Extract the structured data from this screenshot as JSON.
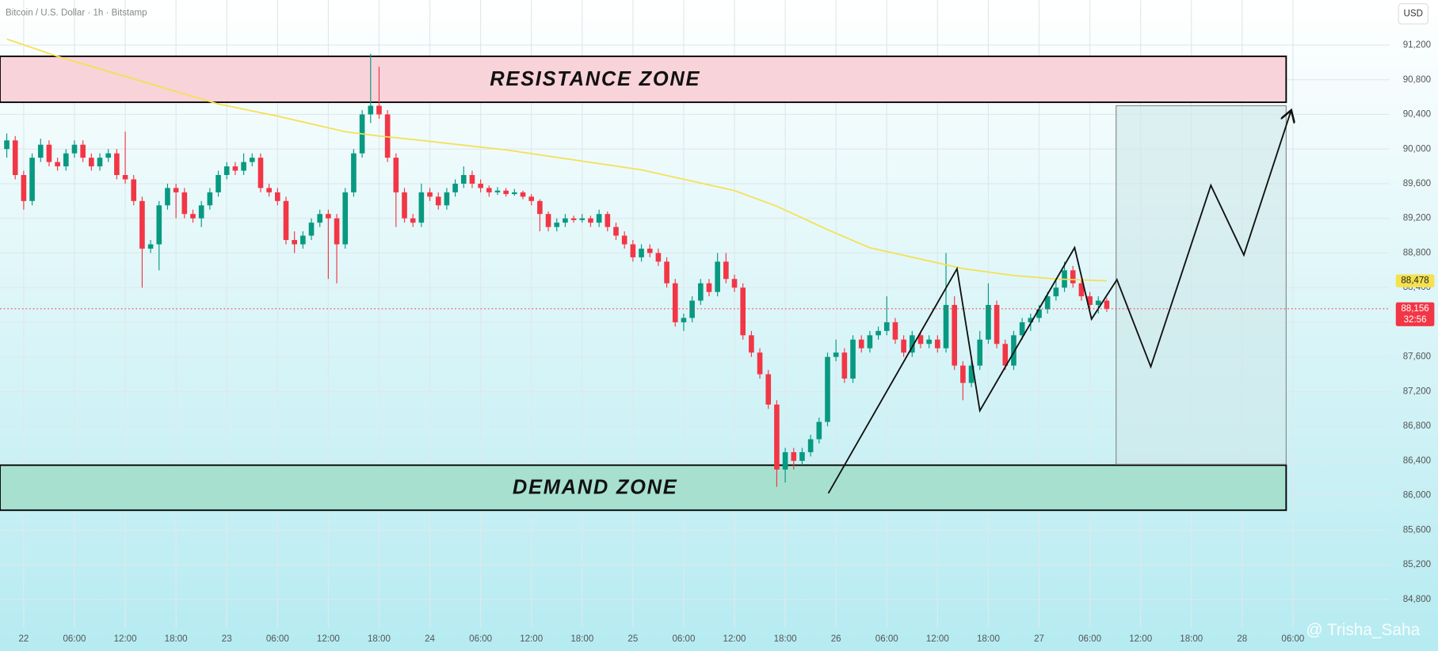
{
  "chart_data": {
    "type": "candlestick",
    "title": "Bitcoin / U.S. Dollar · 1h · Bitstamp",
    "currency": "USD",
    "watermark": "@ Trisha_Saha",
    "up_color": "#089981",
    "down_color": "#f23645",
    "xlim": [
      -0.8,
      163.4
    ],
    "ylim": [
      84470,
      91720
    ],
    "grid": true,
    "yticks": [
      {
        "value": 91200,
        "label": "91,200"
      },
      {
        "value": 90800,
        "label": "90,800"
      },
      {
        "value": 90400,
        "label": "90,400"
      },
      {
        "value": 90000,
        "label": "90,000"
      },
      {
        "value": 89600,
        "label": "89,600"
      },
      {
        "value": 89200,
        "label": "89,200"
      },
      {
        "value": 88800,
        "label": "88,800"
      },
      {
        "value": 88400,
        "label": "88,400"
      },
      {
        "value": 88000,
        "label": "88,000"
      },
      {
        "value": 87600,
        "label": "87,600"
      },
      {
        "value": 87200,
        "label": "87,200"
      },
      {
        "value": 86800,
        "label": "86,800"
      },
      {
        "value": 86400,
        "label": "86,400"
      },
      {
        "value": 86000,
        "label": "86,000"
      },
      {
        "value": 85600,
        "label": "85,600"
      },
      {
        "value": 85200,
        "label": "85,200"
      },
      {
        "value": 84800,
        "label": "84,800"
      }
    ],
    "xticks": [
      {
        "value": 2,
        "label": "22"
      },
      {
        "value": 8,
        "label": "06:00"
      },
      {
        "value": 14,
        "label": "12:00"
      },
      {
        "value": 20,
        "label": "18:00"
      },
      {
        "value": 26,
        "label": "23"
      },
      {
        "value": 32,
        "label": "06:00"
      },
      {
        "value": 38,
        "label": "12:00"
      },
      {
        "value": 44,
        "label": "18:00"
      },
      {
        "value": 50,
        "label": "24"
      },
      {
        "value": 56,
        "label": "06:00"
      },
      {
        "value": 62,
        "label": "12:00"
      },
      {
        "value": 68,
        "label": "18:00"
      },
      {
        "value": 74,
        "label": "25"
      },
      {
        "value": 80,
        "label": "06:00"
      },
      {
        "value": 86,
        "label": "12:00"
      },
      {
        "value": 92,
        "label": "18:00"
      },
      {
        "value": 98,
        "label": "26"
      },
      {
        "value": 104,
        "label": "06:00"
      },
      {
        "value": 110,
        "label": "12:00"
      },
      {
        "value": 116,
        "label": "18:00"
      },
      {
        "value": 122,
        "label": "27"
      },
      {
        "value": 128,
        "label": "06:00"
      },
      {
        "value": 134,
        "label": "12:00"
      },
      {
        "value": 140,
        "label": "18:00"
      },
      {
        "value": 146,
        "label": "28"
      },
      {
        "value": 152,
        "label": "06:00"
      }
    ],
    "ohlc": [
      [
        90000,
        90180,
        89900,
        90100
      ],
      [
        90100,
        90150,
        89650,
        89700
      ],
      [
        89700,
        89750,
        89300,
        89400
      ],
      [
        89400,
        89950,
        89350,
        89900
      ],
      [
        89900,
        90120,
        89850,
        90050
      ],
      [
        90050,
        90100,
        89800,
        89850
      ],
      [
        89850,
        89900,
        89750,
        89800
      ],
      [
        89800,
        90000,
        89750,
        89950
      ],
      [
        89950,
        90100,
        89900,
        90050
      ],
      [
        90050,
        90100,
        89850,
        89900
      ],
      [
        89900,
        89950,
        89750,
        89800
      ],
      [
        89800,
        89950,
        89750,
        89900
      ],
      [
        89900,
        90000,
        89850,
        89950
      ],
      [
        89950,
        90000,
        89650,
        89700
      ],
      [
        89700,
        90200,
        89600,
        89650
      ],
      [
        89650,
        89700,
        89350,
        89400
      ],
      [
        89400,
        89450,
        88400,
        88850
      ],
      [
        88850,
        88950,
        88800,
        88900
      ],
      [
        88900,
        89400,
        88600,
        89350
      ],
      [
        89350,
        89600,
        89300,
        89550
      ],
      [
        89550,
        89600,
        89200,
        89500
      ],
      [
        89500,
        89550,
        89200,
        89250
      ],
      [
        89250,
        89300,
        89150,
        89200
      ],
      [
        89200,
        89400,
        89100,
        89350
      ],
      [
        89350,
        89550,
        89300,
        89500
      ],
      [
        89500,
        89750,
        89450,
        89700
      ],
      [
        89700,
        89850,
        89650,
        89800
      ],
      [
        89800,
        89850,
        89700,
        89750
      ],
      [
        89750,
        89950,
        89700,
        89850
      ],
      [
        89850,
        89950,
        89800,
        89900
      ],
      [
        89900,
        89950,
        89500,
        89550
      ],
      [
        89550,
        89600,
        89450,
        89500
      ],
      [
        89500,
        89550,
        89350,
        89400
      ],
      [
        89400,
        89450,
        88900,
        88950
      ],
      [
        88950,
        89050,
        88800,
        88900
      ],
      [
        88900,
        89050,
        88850,
        89000
      ],
      [
        89000,
        89200,
        88950,
        89150
      ],
      [
        89150,
        89300,
        89100,
        89250
      ],
      [
        89250,
        89300,
        88500,
        89200
      ],
      [
        89200,
        89250,
        88450,
        88900
      ],
      [
        88900,
        89550,
        88850,
        89500
      ],
      [
        89500,
        90000,
        89450,
        89950
      ],
      [
        89950,
        90450,
        89900,
        90400
      ],
      [
        90400,
        91100,
        90300,
        90500
      ],
      [
        90500,
        90950,
        90350,
        90400
      ],
      [
        90400,
        90450,
        89850,
        89900
      ],
      [
        89900,
        89950,
        89100,
        89500
      ],
      [
        89500,
        89550,
        89150,
        89200
      ],
      [
        89200,
        89250,
        89100,
        89150
      ],
      [
        89150,
        89600,
        89100,
        89500
      ],
      [
        89500,
        89550,
        89400,
        89450
      ],
      [
        89450,
        89500,
        89300,
        89350
      ],
      [
        89350,
        89550,
        89300,
        89500
      ],
      [
        89500,
        89650,
        89450,
        89600
      ],
      [
        89600,
        89800,
        89550,
        89700
      ],
      [
        89700,
        89750,
        89550,
        89600
      ],
      [
        89600,
        89650,
        89500,
        89550
      ],
      [
        89550,
        89580,
        89450,
        89500
      ],
      [
        89500,
        89560,
        89470,
        89520
      ],
      [
        89520,
        89550,
        89450,
        89480
      ],
      [
        89480,
        89540,
        89460,
        89500
      ],
      [
        89500,
        89520,
        89420,
        89450
      ],
      [
        89450,
        89480,
        89350,
        89400
      ],
      [
        89400,
        89420,
        89050,
        89250
      ],
      [
        89250,
        89280,
        89050,
        89100
      ],
      [
        89100,
        89200,
        89050,
        89150
      ],
      [
        89150,
        89250,
        89100,
        89200
      ],
      [
        89200,
        89230,
        89150,
        89180
      ],
      [
        89180,
        89250,
        89150,
        89200
      ],
      [
        89200,
        89230,
        89100,
        89150
      ],
      [
        89150,
        89300,
        89100,
        89250
      ],
      [
        89250,
        89280,
        89050,
        89100
      ],
      [
        89100,
        89150,
        88950,
        89000
      ],
      [
        89000,
        89050,
        88850,
        88900
      ],
      [
        88900,
        88950,
        88700,
        88750
      ],
      [
        88750,
        88900,
        88700,
        88850
      ],
      [
        88850,
        88900,
        88750,
        88800
      ],
      [
        88800,
        88850,
        88650,
        88700
      ],
      [
        88700,
        88750,
        88400,
        88450
      ],
      [
        88450,
        88500,
        87950,
        88000
      ],
      [
        88000,
        88100,
        87900,
        88050
      ],
      [
        88050,
        88300,
        88000,
        88250
      ],
      [
        88250,
        88500,
        88200,
        88450
      ],
      [
        88450,
        88500,
        88300,
        88350
      ],
      [
        88350,
        88800,
        88300,
        88700
      ],
      [
        88700,
        88800,
        88450,
        88500
      ],
      [
        88500,
        88550,
        88350,
        88400
      ],
      [
        88400,
        88450,
        87800,
        87850
      ],
      [
        87850,
        87900,
        87600,
        87650
      ],
      [
        87650,
        87700,
        87350,
        87400
      ],
      [
        87400,
        87450,
        87000,
        87050
      ],
      [
        87050,
        87100,
        86100,
        86300
      ],
      [
        86300,
        86550,
        86150,
        86500
      ],
      [
        86500,
        86550,
        86300,
        86400
      ],
      [
        86400,
        86550,
        86350,
        86500
      ],
      [
        86500,
        86700,
        86450,
        86650
      ],
      [
        86650,
        86900,
        86600,
        86850
      ],
      [
        86850,
        87650,
        86800,
        87600
      ],
      [
        87600,
        87800,
        87550,
        87650
      ],
      [
        87650,
        87700,
        87300,
        87350
      ],
      [
        87350,
        87850,
        87300,
        87800
      ],
      [
        87800,
        87850,
        87650,
        87700
      ],
      [
        87700,
        87900,
        87650,
        87850
      ],
      [
        87850,
        87950,
        87800,
        87900
      ],
      [
        87900,
        88300,
        87850,
        88000
      ],
      [
        88000,
        88050,
        87750,
        87800
      ],
      [
        87800,
        87850,
        87600,
        87650
      ],
      [
        87650,
        87900,
        87600,
        87850
      ],
      [
        87850,
        87900,
        87700,
        87750
      ],
      [
        87750,
        87850,
        87700,
        87800
      ],
      [
        87800,
        87850,
        87650,
        87700
      ],
      [
        87700,
        88800,
        87650,
        88200
      ],
      [
        88200,
        88300,
        87450,
        87500
      ],
      [
        87500,
        87550,
        87100,
        87300
      ],
      [
        87300,
        87600,
        87250,
        87500
      ],
      [
        87500,
        87900,
        87450,
        87800
      ],
      [
        87800,
        88450,
        87750,
        88200
      ],
      [
        88200,
        88250,
        87700,
        87750
      ],
      [
        87750,
        87800,
        87450,
        87500
      ],
      [
        87500,
        87900,
        87450,
        87850
      ],
      [
        87850,
        88050,
        87800,
        88000
      ],
      [
        88000,
        88100,
        87900,
        88050
      ],
      [
        88050,
        88200,
        88000,
        88150
      ],
      [
        88150,
        88350,
        88100,
        88300
      ],
      [
        88300,
        88500,
        88250,
        88400
      ],
      [
        88400,
        88700,
        88350,
        88600
      ],
      [
        88600,
        88650,
        88400,
        88450
      ],
      [
        88450,
        88500,
        88250,
        88300
      ],
      [
        88300,
        88350,
        88150,
        88200
      ],
      [
        88200,
        88300,
        88100,
        88250
      ],
      [
        88250,
        88280,
        88120,
        88156
      ]
    ],
    "moving_average": {
      "color": "#f5e04f",
      "x": [
        0,
        6,
        25,
        32,
        40,
        44,
        48,
        59,
        75,
        86,
        91,
        97,
        102,
        113,
        119,
        124,
        130
      ],
      "values": [
        91270,
        91070,
        90520,
        90380,
        90200,
        90150,
        90110,
        89990,
        89760,
        89520,
        89340,
        89070,
        88860,
        88620,
        88540,
        88500,
        88478
      ]
    },
    "zones": [
      {
        "label": "RESISTANCE ZONE",
        "color": "#f8d3d9",
        "x": [
          -0.8,
          151.2
        ],
        "ylim": [
          90540,
          91070
        ]
      },
      {
        "label": "DEMAND ZONE",
        "color": "#a7e0cf",
        "x": [
          -0.8,
          151.2
        ],
        "ylim": [
          85830,
          86350
        ]
      },
      {
        "color": "#cfe7ea",
        "x": [
          131.1,
          151.2
        ],
        "ylim": [
          86360,
          90500
        ]
      }
    ],
    "projection": {
      "x": [
        97.1,
        112.3,
        115,
        126.2,
        128.2,
        131.2,
        135.2,
        142.3,
        146.2,
        151.8
      ],
      "values": [
        86026,
        88618,
        86979,
        88862,
        88037,
        88492,
        87487,
        89581,
        88777,
        90449
      ]
    },
    "price_labels": [
      {
        "value": 88478,
        "label": "88,478",
        "color": "#f5e04f",
        "text_color": "#222"
      },
      {
        "value": 88156,
        "label": "88,156",
        "sub": "32:56",
        "color": "#f23645",
        "text_color": "#fff"
      }
    ]
  }
}
